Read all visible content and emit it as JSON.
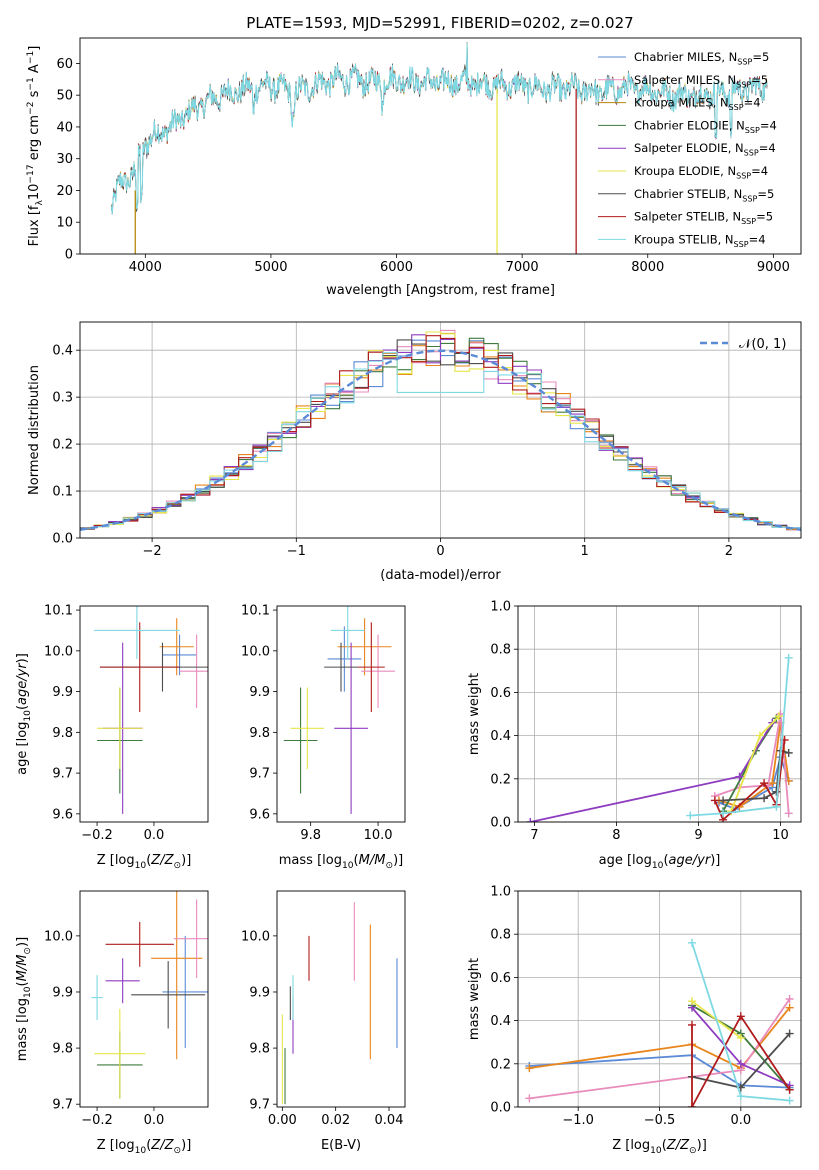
{
  "figure_title": "PLATE=1593, MJD=52991, FIBERID=0202, z=0.027",
  "colors": {
    "Chabrier MILES": "#5b8ad6",
    "Salpeter MILES": "#e8861b",
    "Kroupa MILES": "#b8860b",
    "Chabrier ELODIE": "#3f7a3f",
    "Salpeter ELODIE": "#8e3cc0",
    "Kroupa ELODIE": "#e6e64a",
    "Chabrier STELIB": "#4d4d4d",
    "Salpeter STELIB": "#b01c1c",
    "Kroupa STELIB": "#7fd9e3",
    "pink": "#e88bbd",
    "gauss": "#5b8ad6"
  },
  "chart_data": [
    {
      "id": "spectrum",
      "type": "line",
      "xlabel": "wavelength [Angstrom, rest frame]",
      "ylabel_parts": [
        "Flux [f",
        "λ",
        "10",
        "−17",
        " erg cm",
        "−2",
        " s",
        "−1",
        " A",
        "−1",
        "]"
      ],
      "xlim": [
        3480,
        9220
      ],
      "ylim": [
        0,
        68
      ],
      "xticks": [
        4000,
        5000,
        6000,
        7000,
        8000,
        9000
      ],
      "yticks": [
        0,
        10,
        20,
        30,
        40,
        50,
        60
      ],
      "legend_position": "upper right",
      "legend": [
        {
          "label": "Chabrier MILES, N",
          "sub": "SSP",
          "eq": "=5",
          "color": "#5b8ad6"
        },
        {
          "label": "Salpeter MILES, N",
          "sub": "SSP",
          "eq": "=5",
          "color": "#e88bbd"
        },
        {
          "label": "Kroupa MILES, N",
          "sub": "SSP",
          "eq": "=4",
          "color": "#b8860b"
        },
        {
          "label": "Chabrier ELODIE, N",
          "sub": "SSP",
          "eq": "=4",
          "color": "#3f7a3f"
        },
        {
          "label": "Salpeter ELODIE, N",
          "sub": "SSP",
          "eq": "=4",
          "color": "#8e3cc0"
        },
        {
          "label": "Kroupa ELODIE, N",
          "sub": "SSP",
          "eq": "=4",
          "color": "#e6e64a"
        },
        {
          "label": "Chabrier STELIB, N",
          "sub": "SSP",
          "eq": "=5",
          "color": "#4d4d4d"
        },
        {
          "label": "Salpeter STELIB, N",
          "sub": "SSP",
          "eq": "=5",
          "color": "#b01c1c"
        },
        {
          "label": "Kroupa STELIB, N",
          "sub": "SSP",
          "eq": "=4",
          "color": "#7fd9e3"
        }
      ],
      "continuum": {
        "x": [
          3730,
          3800,
          3900,
          3950,
          4000,
          4100,
          4200,
          4300,
          4400,
          4500,
          4600,
          4800,
          5000,
          5200,
          5400,
          5600,
          5800,
          6000,
          6200,
          6400,
          6600,
          6800,
          7000,
          7200,
          7400,
          7600,
          7800,
          8000,
          8200,
          8400,
          8600,
          8800,
          8950
        ],
        "y": [
          15,
          22,
          25,
          30,
          35,
          38,
          40,
          43,
          46,
          48,
          50,
          52,
          53,
          51,
          54,
          55,
          54,
          55,
          54,
          54,
          54,
          53,
          53,
          52,
          52,
          51,
          52,
          52,
          50,
          50,
          51,
          52,
          53
        ]
      },
      "dropouts": [
        {
          "x": 3920,
          "color": "#b8860b",
          "from": 20,
          "to": 0
        },
        {
          "x": 6800,
          "color": "#e6e64a",
          "from": 52,
          "to": 0
        },
        {
          "x": 7430,
          "color": "#b01c1c",
          "from": 52,
          "to": 0
        }
      ]
    },
    {
      "id": "residuals",
      "type": "histogram",
      "xlabel": "(data-model)/error",
      "ylabel": "Normed distribution",
      "xlim": [
        -2.5,
        2.5
      ],
      "ylim": [
        0,
        0.46
      ],
      "xticks": [
        -2,
        -1,
        0,
        1,
        2
      ],
      "yticks": [
        0.0,
        0.1,
        0.2,
        0.3,
        0.4
      ],
      "grid": true,
      "legend_position": "upper right",
      "legend_label": "𝒩(0, 1)",
      "bin_width": 0.1
    },
    {
      "id": "age_vs_Z",
      "type": "errorbar",
      "xlabel": "Z [log10(Z/Z⊙)]",
      "ylabel": "age  [log10(age/yr)]",
      "xlim": [
        -0.26,
        0.19
      ],
      "ylim": [
        9.58,
        10.11
      ],
      "xticks": [
        -0.2,
        0.0
      ],
      "yticks": [
        9.6,
        9.7,
        9.8,
        9.9,
        10.0,
        10.1
      ],
      "points": [
        {
          "x": 0.09,
          "y": 9.99,
          "xerr": 0.06,
          "yerr": 0.05,
          "color": "#5b8ad6"
        },
        {
          "x": 0.08,
          "y": 10.01,
          "xerr": 0.06,
          "yerr": 0.07,
          "color": "#e8861b"
        },
        {
          "x": 0.15,
          "y": 9.95,
          "xerr": 0.06,
          "yerr": 0.09,
          "color": "#e88bbd"
        },
        {
          "x": -0.12,
          "y": 9.78,
          "xerr": 0.08,
          "yerr": 0.13,
          "color": "#3f7a3f"
        },
        {
          "x": -0.11,
          "y": 9.81,
          "xerr": 0.07,
          "yerr": 0.21,
          "color": "#8e3cc0"
        },
        {
          "x": -0.12,
          "y": 9.81,
          "xerr": 0.08,
          "yerr": 0.1,
          "color": "#e6e64a"
        },
        {
          "x": 0.03,
          "y": 9.96,
          "xerr": 0.22,
          "yerr": 0.06,
          "color": "#4d4d4d"
        },
        {
          "x": -0.05,
          "y": 9.96,
          "xerr": 0.14,
          "yerr": 0.11,
          "color": "#b01c1c"
        },
        {
          "x": -0.06,
          "y": 10.05,
          "xerr": 0.15,
          "yerr": 0.07,
          "color": "#7fd9e3"
        }
      ]
    },
    {
      "id": "age_vs_mass",
      "type": "errorbar",
      "xlabel": "mass [log10(M/M⊙)]",
      "xlim": [
        9.7,
        10.08
      ],
      "ylim": [
        9.58,
        10.11
      ],
      "xticks": [
        9.8,
        10.0
      ],
      "yticks": [
        9.6,
        9.7,
        9.8,
        9.9,
        10.0,
        10.1
      ],
      "points": [
        {
          "x": 9.9,
          "y": 9.98,
          "xerr": 0.05,
          "yerr": 0.08,
          "color": "#5b8ad6"
        },
        {
          "x": 9.96,
          "y": 10.01,
          "xerr": 0.08,
          "yerr": 0.07,
          "color": "#e8861b"
        },
        {
          "x": 10.0,
          "y": 9.95,
          "xerr": 0.05,
          "yerr": 0.09,
          "color": "#e88bbd"
        },
        {
          "x": 9.77,
          "y": 9.78,
          "xerr": 0.05,
          "yerr": 0.13,
          "color": "#3f7a3f"
        },
        {
          "x": 9.92,
          "y": 9.81,
          "xerr": 0.05,
          "yerr": 0.21,
          "color": "#8e3cc0"
        },
        {
          "x": 9.79,
          "y": 9.81,
          "xerr": 0.05,
          "yerr": 0.1,
          "color": "#e6e64a"
        },
        {
          "x": 9.89,
          "y": 9.96,
          "xerr": 0.05,
          "yerr": 0.06,
          "color": "#4d4d4d"
        },
        {
          "x": 9.98,
          "y": 9.96,
          "xerr": 0.04,
          "yerr": 0.11,
          "color": "#b01c1c"
        },
        {
          "x": 9.91,
          "y": 10.05,
          "xerr": 0.05,
          "yerr": 0.07,
          "color": "#7fd9e3"
        }
      ]
    },
    {
      "id": "weight_vs_age",
      "type": "line",
      "xlabel": "age  [log10(age/yr)]",
      "ylabel": "mass weight",
      "xlim": [
        6.8,
        10.25
      ],
      "ylim": [
        0,
        1.0
      ],
      "xticks": [
        7,
        8,
        9,
        10
      ],
      "yticks": [
        0.0,
        0.2,
        0.4,
        0.6,
        0.8,
        1.0
      ],
      "grid": true,
      "series": [
        {
          "color": "#5b8ad6",
          "x": [
            9.25,
            9.45,
            9.9,
            10.0,
            10.1
          ],
          "y": [
            0.09,
            0.06,
            0.16,
            0.3,
            0.19
          ]
        },
        {
          "color": "#e8861b",
          "x": [
            9.25,
            9.5,
            9.9,
            10.0,
            10.1
          ],
          "y": [
            0.1,
            0.07,
            0.18,
            0.46,
            0.19
          ]
        },
        {
          "color": "#e88bbd",
          "x": [
            9.2,
            9.5,
            9.85,
            10.0,
            10.1
          ],
          "y": [
            0.12,
            0.16,
            0.17,
            0.5,
            0.04
          ]
        },
        {
          "color": "#3f7a3f",
          "x": [
            9.3,
            9.7,
            9.95
          ],
          "y": [
            0.05,
            0.33,
            0.48
          ]
        },
        {
          "color": "#8e3cc0",
          "x": [
            6.95,
            9.5,
            9.9
          ],
          "y": [
            0.0,
            0.21,
            0.46
          ]
        },
        {
          "color": "#e6e64a",
          "x": [
            9.4,
            9.75,
            9.98
          ],
          "y": [
            0.05,
            0.4,
            0.49
          ]
        },
        {
          "color": "#4d4d4d",
          "x": [
            9.3,
            9.8,
            9.95,
            10.0,
            10.1
          ],
          "y": [
            0.1,
            0.11,
            0.14,
            0.33,
            0.32
          ]
        },
        {
          "color": "#b01c1c",
          "x": [
            9.2,
            9.3,
            9.8,
            9.95,
            10.05
          ],
          "y": [
            0.1,
            0.01,
            0.18,
            0.08,
            0.38
          ]
        },
        {
          "color": "#7fd9e3",
          "x": [
            8.9,
            9.3,
            9.95,
            10.1
          ],
          "y": [
            0.03,
            0.04,
            0.07,
            0.76
          ]
        }
      ]
    },
    {
      "id": "mass_vs_Z",
      "type": "errorbar",
      "xlabel": "Z [log10(Z/Z⊙)]",
      "ylabel": "mass [log10(M/M⊙)]",
      "xlim": [
        -0.26,
        0.19
      ],
      "ylim": [
        9.695,
        10.08
      ],
      "xticks": [
        -0.2,
        0.0
      ],
      "yticks": [
        9.7,
        9.8,
        9.9,
        10.0
      ],
      "points": [
        {
          "x": 0.11,
          "y": 9.9,
          "xerr": 0.08,
          "yerr": 0.1,
          "color": "#5b8ad6"
        },
        {
          "x": 0.08,
          "y": 9.96,
          "xerr": 0.09,
          "yerr": 0.18,
          "color": "#e8861b"
        },
        {
          "x": 0.15,
          "y": 9.995,
          "xerr": 0.08,
          "yerr": 0.07,
          "color": "#e88bbd"
        },
        {
          "x": -0.12,
          "y": 9.77,
          "xerr": 0.08,
          "yerr": 0.06,
          "color": "#3f7a3f"
        },
        {
          "x": -0.11,
          "y": 9.92,
          "xerr": 0.06,
          "yerr": 0.04,
          "color": "#8e3cc0"
        },
        {
          "x": -0.12,
          "y": 9.79,
          "xerr": 0.09,
          "yerr": 0.08,
          "color": "#e6e64a"
        },
        {
          "x": 0.05,
          "y": 9.895,
          "xerr": 0.13,
          "yerr": 0.06,
          "color": "#4d4d4d"
        },
        {
          "x": -0.05,
          "y": 9.985,
          "xerr": 0.12,
          "yerr": 0.04,
          "color": "#b01c1c"
        },
        {
          "x": -0.2,
          "y": 9.89,
          "xerr": 0.02,
          "yerr": 0.04,
          "color": "#7fd9e3"
        }
      ]
    },
    {
      "id": "mass_vs_ebv",
      "type": "errorbar",
      "xlabel": "E(B-V)",
      "xlim": [
        -0.002,
        0.046
      ],
      "ylim": [
        9.695,
        10.08
      ],
      "xticks": [
        0.0,
        0.02,
        0.04
      ],
      "yticks": [
        9.7,
        9.8,
        9.9,
        10.0
      ],
      "points": [
        {
          "x": 0.043,
          "y": 9.88,
          "xerr": 0,
          "yerr": 0.08,
          "color": "#5b8ad6"
        },
        {
          "x": 0.033,
          "y": 9.9,
          "xerr": 0,
          "yerr": 0.12,
          "color": "#e8861b"
        },
        {
          "x": 0.027,
          "y": 9.99,
          "xerr": 0,
          "yerr": 0.07,
          "color": "#e88bbd"
        },
        {
          "x": 0.0,
          "y": 9.78,
          "xerr": 0,
          "yerr": 0.08,
          "color": "#e6e64a"
        },
        {
          "x": 0.004,
          "y": 9.84,
          "xerr": 0,
          "yerr": 0.05,
          "color": "#8e3cc0"
        },
        {
          "x": 0.001,
          "y": 9.75,
          "xerr": 0,
          "yerr": 0.05,
          "color": "#3f7a3f"
        },
        {
          "x": 0.003,
          "y": 9.88,
          "xerr": 0,
          "yerr": 0.03,
          "color": "#4d4d4d"
        },
        {
          "x": 0.01,
          "y": 9.96,
          "xerr": 0,
          "yerr": 0.04,
          "color": "#b01c1c"
        },
        {
          "x": 0.004,
          "y": 9.89,
          "xerr": 0,
          "yerr": 0.04,
          "color": "#7fd9e3"
        }
      ]
    },
    {
      "id": "weight_vs_Z",
      "type": "line",
      "xlabel": "Z [log10(Z/Z⊙)]",
      "ylabel": "mass weight",
      "xlim": [
        -1.37,
        0.37
      ],
      "ylim": [
        0,
        1.0
      ],
      "xticks": [
        -1.0,
        -0.5,
        0.0
      ],
      "yticks": [
        0.0,
        0.2,
        0.4,
        0.6,
        0.8,
        1.0
      ],
      "grid": true,
      "series": [
        {
          "color": "#5b8ad6",
          "x": [
            -1.3,
            -0.3,
            0.0,
            0.3
          ],
          "y": [
            0.19,
            0.24,
            0.1,
            0.09
          ]
        },
        {
          "color": "#e8861b",
          "x": [
            -1.3,
            -0.3,
            0.0,
            0.3
          ],
          "y": [
            0.18,
            0.29,
            0.18,
            0.46
          ]
        },
        {
          "color": "#e88bbd",
          "x": [
            -1.3,
            0.0,
            0.3
          ],
          "y": [
            0.04,
            0.17,
            0.5
          ]
        },
        {
          "color": "#3f7a3f",
          "x": [
            -0.3,
            0.0,
            0.3
          ],
          "y": [
            0.47,
            0.34,
            0.08
          ]
        },
        {
          "color": "#8e3cc0",
          "x": [
            -0.3,
            0.0,
            0.3
          ],
          "y": [
            0.46,
            0.2,
            0.1
          ]
        },
        {
          "color": "#e6e64a",
          "x": [
            -0.3,
            0.0
          ],
          "y": [
            0.49,
            0.32
          ]
        },
        {
          "color": "#4d4d4d",
          "x": [
            -0.3,
            0.0,
            0.3
          ],
          "y": [
            0.14,
            0.09,
            0.34
          ]
        },
        {
          "color": "#b01c1c",
          "x": [
            -0.3,
            -0.3,
            0.0,
            0.3
          ],
          "y": [
            0.38,
            0.0,
            0.42,
            0.08
          ]
        },
        {
          "color": "#7fd9e3",
          "x": [
            -0.3,
            0.0,
            0.3
          ],
          "y": [
            0.76,
            0.05,
            0.03
          ]
        }
      ]
    }
  ]
}
